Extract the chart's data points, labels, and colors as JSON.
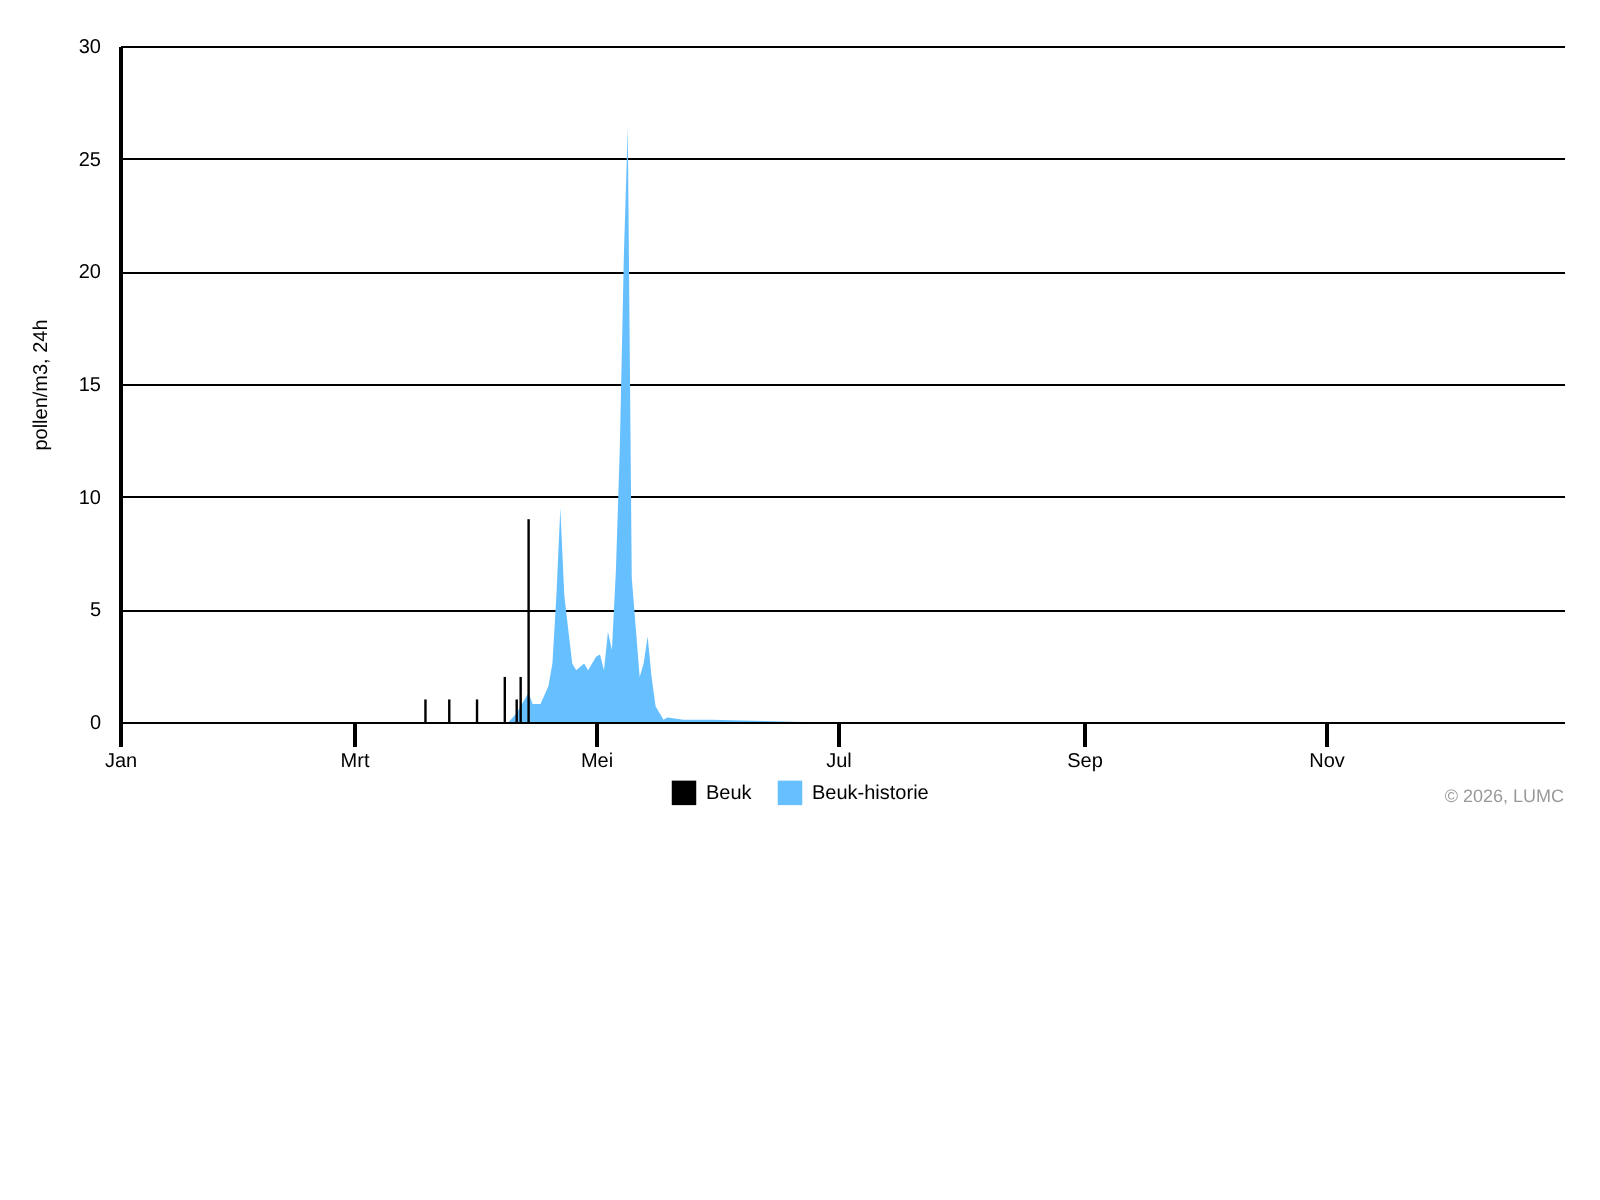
{
  "chart_data": {
    "type": "bar",
    "ylabel": "pollen/m3, 24h",
    "annotations": [
      "© 2026, LUMC"
    ],
    "xlim": [
      "--01-01",
      "--12-31"
    ],
    "xticks": [
      {
        "value": "--01-01",
        "label": "Jan"
      },
      {
        "value": "--03-01",
        "label": "Mrt"
      },
      {
        "value": "--05-01",
        "label": "Mei"
      },
      {
        "value": "--07-01",
        "label": "Jul"
      },
      {
        "value": "--09-01",
        "label": "Sep"
      },
      {
        "value": "--11-01",
        "label": "Nov"
      }
    ],
    "ylim": [
      0,
      30
    ],
    "yticks": [
      0,
      5,
      10,
      15,
      20,
      25,
      30
    ],
    "grid": "y",
    "legend": "bottom",
    "series": [
      {
        "name": "Beuk",
        "color": "#000000",
        "x": [
          "--03-19",
          "--03-25",
          "--04-01",
          "--04-08",
          "--04-11",
          "--04-12",
          "--04-14"
        ],
        "values": [
          1,
          1,
          1,
          2,
          1,
          2,
          9
        ]
      },
      {
        "name": "Beuk-historie",
        "type": "area",
        "color": "#66bfff",
        "x": [
          "--04-09",
          "--04-11",
          "--04-14",
          "--04-15",
          "--04-17",
          "--04-19",
          "--04-20",
          "--04-21",
          "--04-22",
          "--04-23",
          "--04-25",
          "--04-26",
          "--04-28",
          "--04-29",
          "--05-01",
          "--05-02",
          "--05-03",
          "--05-04",
          "--05-05",
          "--05-06",
          "--05-07",
          "--05-08",
          "--05-09",
          "--05-10",
          "--05-12",
          "--05-13",
          "--05-14",
          "--05-15",
          "--05-16",
          "--05-18",
          "--05-19",
          "--05-23",
          "--05-30",
          "--06-22"
        ],
        "values": [
          0,
          0.4,
          1.3,
          0.8,
          0.8,
          1.6,
          2.6,
          5.6,
          9.5,
          5.6,
          2.6,
          2.3,
          2.6,
          2.3,
          2.9,
          3.0,
          2.3,
          4.0,
          3.2,
          6.7,
          12.2,
          20.6,
          26.4,
          6.4,
          2.0,
          2.6,
          3.8,
          2.0,
          0.7,
          0.1,
          0.2,
          0.1,
          0.1,
          0
        ]
      }
    ]
  }
}
